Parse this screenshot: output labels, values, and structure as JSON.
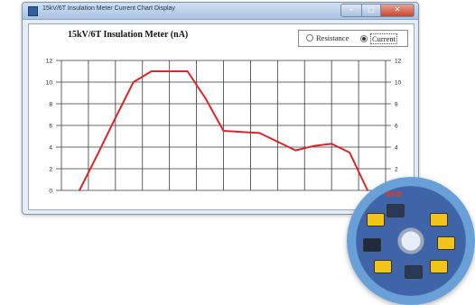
{
  "window": {
    "title": "15kV/6T Insulation Meter Current Chart Display",
    "controls": {
      "minimize": "",
      "maximize": "",
      "close": ""
    }
  },
  "chart_panel": {
    "options": [
      {
        "label": "Resistance",
        "selected": false
      },
      {
        "label": "Current",
        "selected": true
      }
    ]
  },
  "chart_data": {
    "type": "line",
    "title": "15kV/6T Insulation Meter (nA)",
    "xlabel": "",
    "ylabel": "",
    "ylim": [
      0,
      12
    ],
    "yticks": [
      0,
      2,
      4,
      6,
      8,
      10,
      12
    ],
    "x": [
      0,
      1,
      2,
      3,
      4,
      5,
      6,
      7,
      8,
      9,
      10,
      11,
      12,
      13,
      14,
      15,
      16
    ],
    "xlim": [
      -1,
      17
    ],
    "grid": true,
    "series": [
      {
        "values": [
          0,
          3.3,
          6.7,
          10.0,
          11.0,
          11.0,
          11.0,
          8.5,
          5.5,
          5.4,
          5.3,
          4.5,
          3.7,
          4.1,
          4.3,
          3.5,
          0
        ],
        "color": "#d8262a"
      }
    ],
    "right_axis": true
  },
  "cd": {
    "brand": "SEW"
  },
  "colors": {
    "line": "#d8262a",
    "grid": "#3a3a3a",
    "accent": "#2f5fa0"
  }
}
